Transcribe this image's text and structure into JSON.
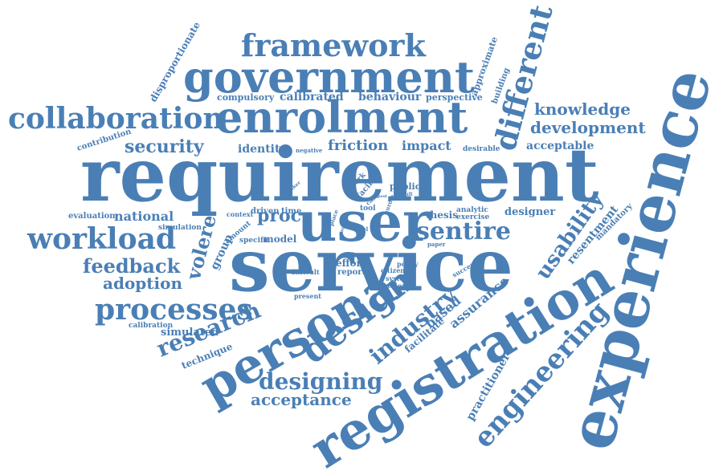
{
  "color": "#4a7fb5",
  "words": [
    "requirement",
    "service",
    "user",
    "experience",
    "registration",
    "persona",
    "government",
    "enrolment",
    "framework",
    "collaboration",
    "design",
    "different",
    "processes",
    "workload",
    "engineering",
    "industry",
    "usability",
    "sentire",
    "designing",
    "research",
    "knowledge",
    "development",
    "security",
    "feedback",
    "adoption",
    "volere",
    "acceptance",
    "national",
    "friction",
    "identity",
    "impact",
    "acceptable",
    "desirable",
    "resentment",
    "mandatory",
    "based",
    "assurance",
    "facilitate",
    "practitioner",
    "proc",
    "disproportionate",
    "approximate",
    "building",
    "calibrated",
    "behaviour",
    "perspective",
    "compulsory",
    "contribution",
    "evaluation",
    "simulation",
    "calibration",
    "simulated",
    "technique",
    "thesis",
    "exercise",
    "analytic",
    "designer",
    "public",
    "result",
    "group",
    "effort",
    "report",
    "model",
    "specific",
    "amount",
    "driven",
    "time",
    "context",
    "difficult",
    "present",
    "policy",
    "citizen",
    "system",
    "serious",
    "success",
    "paper",
    "level",
    "tool",
    "facing",
    "work",
    "maker",
    "case",
    "place",
    "hurdle",
    "negative",
    "cause",
    "post"
  ]
}
